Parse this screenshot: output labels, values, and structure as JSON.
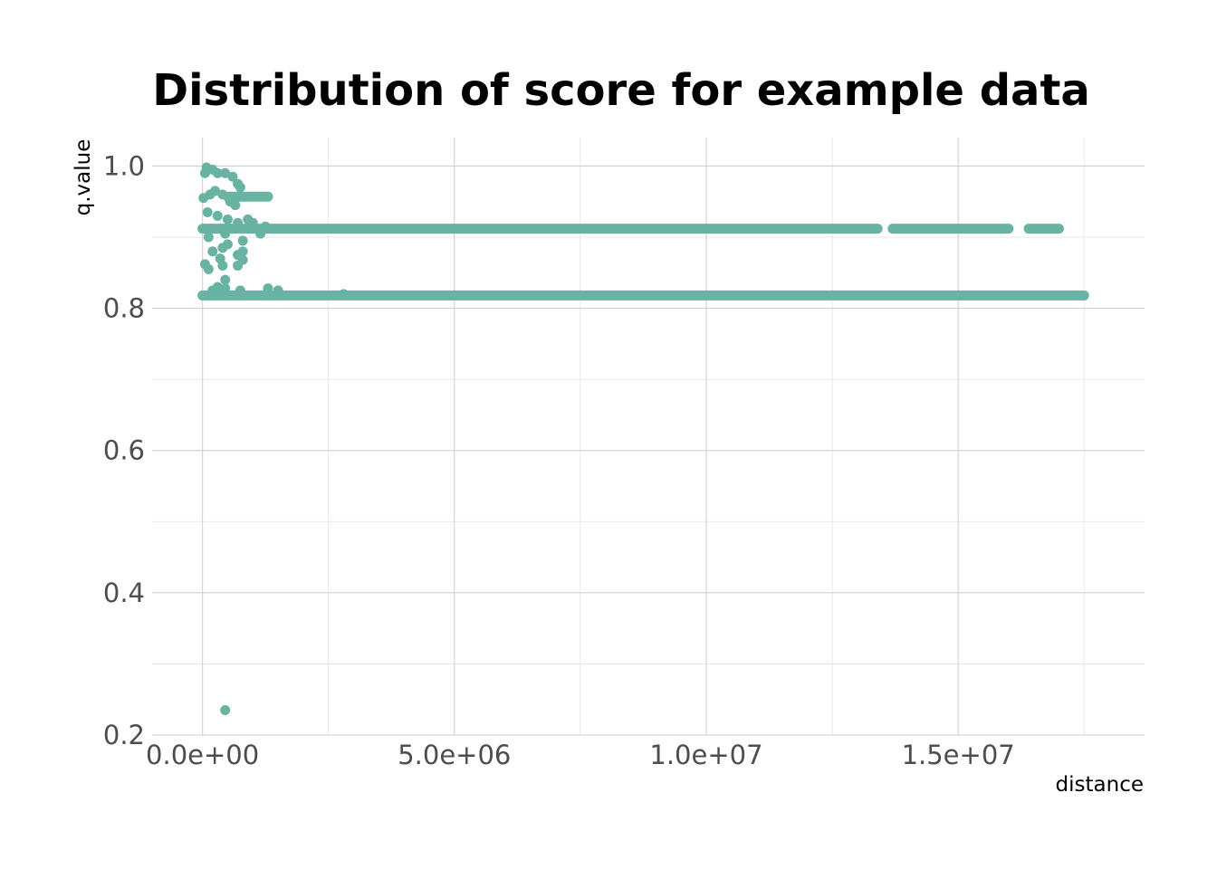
{
  "chart_data": {
    "type": "scatter",
    "title": "Distribution of score for example data",
    "xlabel": "distance",
    "ylabel": "q.value",
    "xlim": [
      -1000000,
      18700000
    ],
    "ylim": [
      0.2,
      1.04
    ],
    "x_ticks": [
      {
        "value": 0,
        "label": "0.0e+00"
      },
      {
        "value": 5000000,
        "label": "5.0e+06"
      },
      {
        "value": 10000000,
        "label": "1.0e+07"
      },
      {
        "value": 15000000,
        "label": "1.5e+07"
      }
    ],
    "y_ticks": [
      {
        "value": 0.2,
        "label": "0.2"
      },
      {
        "value": 0.4,
        "label": "0.4"
      },
      {
        "value": 0.6,
        "label": "0.6"
      },
      {
        "value": 0.8,
        "label": "0.8"
      },
      {
        "value": 1.0,
        "label": "1.0"
      }
    ],
    "grid": true,
    "legend": "none",
    "point_color": "#69b3a2",
    "series": [
      {
        "bands": [
          {
            "y": 0.818,
            "x_from": 0,
            "x_to": 17500000
          },
          {
            "y": 0.912,
            "x_from": 0,
            "x_to": 13400000
          },
          {
            "y": 0.912,
            "x_from": 13700000,
            "x_to": 16000000
          },
          {
            "y": 0.912,
            "x_from": 16400000,
            "x_to": 17000000
          },
          {
            "y": 0.957,
            "x_from": 500000,
            "x_to": 1300000
          }
        ],
        "points": [
          {
            "x": 450000,
            "y": 0.235
          },
          {
            "x": 50000,
            "y": 0.99
          },
          {
            "x": 80000,
            "y": 0.998
          },
          {
            "x": 200000,
            "y": 0.995
          },
          {
            "x": 300000,
            "y": 0.99
          },
          {
            "x": 450000,
            "y": 0.99
          },
          {
            "x": 600000,
            "y": 0.985
          },
          {
            "x": 700000,
            "y": 0.975
          },
          {
            "x": 750000,
            "y": 0.97
          },
          {
            "x": 20000,
            "y": 0.955
          },
          {
            "x": 150000,
            "y": 0.96
          },
          {
            "x": 250000,
            "y": 0.965
          },
          {
            "x": 400000,
            "y": 0.96
          },
          {
            "x": 550000,
            "y": 0.95
          },
          {
            "x": 650000,
            "y": 0.945
          },
          {
            "x": 100000,
            "y": 0.935
          },
          {
            "x": 300000,
            "y": 0.93
          },
          {
            "x": 500000,
            "y": 0.925
          },
          {
            "x": 700000,
            "y": 0.92
          },
          {
            "x": 900000,
            "y": 0.925
          },
          {
            "x": 1000000,
            "y": 0.92
          },
          {
            "x": 1250000,
            "y": 0.915
          },
          {
            "x": 1150000,
            "y": 0.905
          },
          {
            "x": 120000,
            "y": 0.9
          },
          {
            "x": 450000,
            "y": 0.905
          },
          {
            "x": 800000,
            "y": 0.895
          },
          {
            "x": 200000,
            "y": 0.88
          },
          {
            "x": 400000,
            "y": 0.885
          },
          {
            "x": 500000,
            "y": 0.89
          },
          {
            "x": 800000,
            "y": 0.88
          },
          {
            "x": 700000,
            "y": 0.875
          },
          {
            "x": 350000,
            "y": 0.87
          },
          {
            "x": 800000,
            "y": 0.868
          },
          {
            "x": 50000,
            "y": 0.862
          },
          {
            "x": 400000,
            "y": 0.86
          },
          {
            "x": 700000,
            "y": 0.86
          },
          {
            "x": 120000,
            "y": 0.855
          },
          {
            "x": 450000,
            "y": 0.84
          },
          {
            "x": 200000,
            "y": 0.825
          },
          {
            "x": 300000,
            "y": 0.83
          },
          {
            "x": 450000,
            "y": 0.828
          },
          {
            "x": 750000,
            "y": 0.825
          },
          {
            "x": 1300000,
            "y": 0.828
          },
          {
            "x": 1500000,
            "y": 0.825
          },
          {
            "x": 2800000,
            "y": 0.82
          }
        ]
      }
    ]
  }
}
